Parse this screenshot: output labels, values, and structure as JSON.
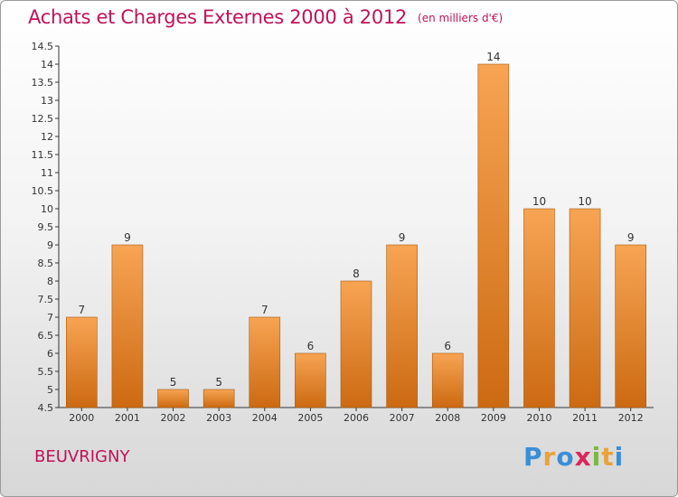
{
  "header": {
    "title": "Achats et Charges Externes 2000 à 2012",
    "unit": "(en milliers d'€)"
  },
  "place": "BEUVRIGNY",
  "logo": {
    "text": "Proxiti",
    "letters": [
      {
        "ch": "P",
        "color": "#3a8ed6"
      },
      {
        "ch": "r",
        "color": "#e9a33a"
      },
      {
        "ch": "o",
        "color": "#3a8ed6"
      },
      {
        "ch": "x",
        "color": "#d9275d"
      },
      {
        "ch": "i",
        "color": "#7ab83e"
      },
      {
        "ch": "t",
        "color": "#e9a33a"
      },
      {
        "ch": "i",
        "color": "#3a8ed6"
      }
    ]
  },
  "colors": {
    "title": "#c0135a",
    "bar_top": "#f7a453",
    "bar_bottom": "#cc6a12",
    "bar_stroke": "#a95a10"
  },
  "chart_data": {
    "type": "bar",
    "title": "Achats et Charges Externes 2000 à 2012",
    "subtitle": "(en milliers d'€)",
    "xlabel": "",
    "ylabel": "",
    "categories": [
      "2000",
      "2001",
      "2002",
      "2003",
      "2004",
      "2005",
      "2006",
      "2007",
      "2008",
      "2009",
      "2010",
      "2011",
      "2012"
    ],
    "values": [
      7,
      9,
      5,
      5,
      7,
      6,
      8,
      9,
      6,
      14,
      10,
      10,
      9
    ],
    "ylim": [
      4.5,
      14.5
    ],
    "yticks": [
      "4.5",
      "5",
      "5.5",
      "6",
      "6.5",
      "7",
      "7.5",
      "8",
      "8.5",
      "9",
      "9.5",
      "10",
      "10.5",
      "11",
      "11.5",
      "12",
      "12.5",
      "13",
      "13.5",
      "14",
      "14.5"
    ],
    "grid": false,
    "legend": "none"
  }
}
